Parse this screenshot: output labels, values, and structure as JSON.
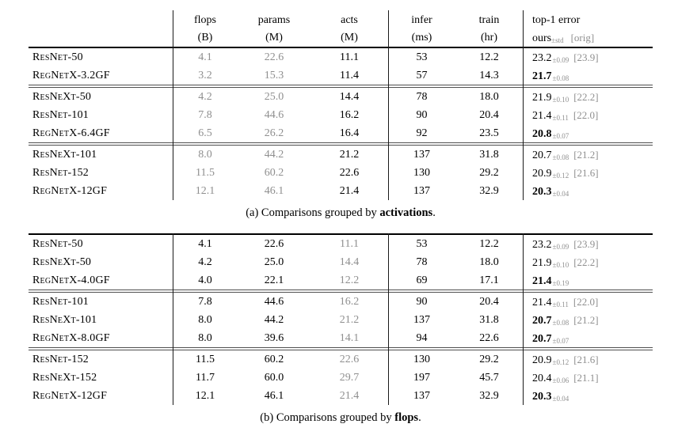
{
  "header": {
    "flops": {
      "l1": "flops",
      "l2": "(B)"
    },
    "params": {
      "l1": "params",
      "l2": "(M)"
    },
    "acts": {
      "l1": "acts",
      "l2": "(M)"
    },
    "infer": {
      "l1": "infer",
      "l2": "(ms)"
    },
    "train": {
      "l1": "train",
      "l2": "(hr)"
    },
    "error": {
      "title": "top-1 error",
      "ours": "ours",
      "std": "±std",
      "orig": "[orig]"
    }
  },
  "colors": {
    "muted": "#8f8f8f",
    "rule": "#000000",
    "double_rule": "#4f4f4f"
  },
  "table_a": {
    "caption": {
      "prefix": "(a) Comparisons grouped by ",
      "emph": "activations",
      "suffix": "."
    },
    "rows": [
      {
        "name": "ResNet-50",
        "flops": "4.1",
        "params": "22.6",
        "acts": "11.1",
        "infer": "53",
        "train": "12.2",
        "err": "23.2",
        "std": "±0.09",
        "orig": "[23.9]",
        "err_bold": false,
        "group_start": false
      },
      {
        "name": "RegNetX-3.2GF",
        "flops": "3.2",
        "params": "15.3",
        "acts": "11.4",
        "infer": "57",
        "train": "14.3",
        "err": "21.7",
        "std": "±0.08",
        "orig": "",
        "err_bold": true,
        "group_start": false
      },
      {
        "name": "ResNeXt-50",
        "flops": "4.2",
        "params": "25.0",
        "acts": "14.4",
        "infer": "78",
        "train": "18.0",
        "err": "21.9",
        "std": "±0.10",
        "orig": "[22.2]",
        "err_bold": false,
        "group_start": true
      },
      {
        "name": "ResNet-101",
        "flops": "7.8",
        "params": "44.6",
        "acts": "16.2",
        "infer": "90",
        "train": "20.4",
        "err": "21.4",
        "std": "±0.11",
        "orig": "[22.0]",
        "err_bold": false,
        "group_start": false
      },
      {
        "name": "RegNetX-6.4GF",
        "flops": "6.5",
        "params": "26.2",
        "acts": "16.4",
        "infer": "92",
        "train": "23.5",
        "err": "20.8",
        "std": "±0.07",
        "orig": "",
        "err_bold": true,
        "group_start": false
      },
      {
        "name": "ResNeXt-101",
        "flops": "8.0",
        "params": "44.2",
        "acts": "21.2",
        "infer": "137",
        "train": "31.8",
        "err": "20.7",
        "std": "±0.08",
        "orig": "[21.2]",
        "err_bold": false,
        "group_start": true
      },
      {
        "name": "ResNet-152",
        "flops": "11.5",
        "params": "60.2",
        "acts": "22.6",
        "infer": "130",
        "train": "29.2",
        "err": "20.9",
        "std": "±0.12",
        "orig": "[21.6]",
        "err_bold": false,
        "group_start": false
      },
      {
        "name": "RegNetX-12GF",
        "flops": "12.1",
        "params": "46.1",
        "acts": "21.4",
        "infer": "137",
        "train": "32.9",
        "err": "20.3",
        "std": "±0.04",
        "orig": "",
        "err_bold": true,
        "group_start": false
      }
    ]
  },
  "table_b": {
    "caption": {
      "prefix": "(b) Comparisons grouped by ",
      "emph": "flops",
      "suffix": "."
    },
    "rows": [
      {
        "name": "ResNet-50",
        "flops": "4.1",
        "params": "22.6",
        "acts": "11.1",
        "infer": "53",
        "train": "12.2",
        "err": "23.2",
        "std": "±0.09",
        "orig": "[23.9]",
        "err_bold": false,
        "group_start": false
      },
      {
        "name": "ResNeXt-50",
        "flops": "4.2",
        "params": "25.0",
        "acts": "14.4",
        "infer": "78",
        "train": "18.0",
        "err": "21.9",
        "std": "±0.10",
        "orig": "[22.2]",
        "err_bold": false,
        "group_start": false
      },
      {
        "name": "RegNetX-4.0GF",
        "flops": "4.0",
        "params": "22.1",
        "acts": "12.2",
        "infer": "69",
        "train": "17.1",
        "err": "21.4",
        "std": "±0.19",
        "orig": "",
        "err_bold": true,
        "group_start": false
      },
      {
        "name": "ResNet-101",
        "flops": "7.8",
        "params": "44.6",
        "acts": "16.2",
        "infer": "90",
        "train": "20.4",
        "err": "21.4",
        "std": "±0.11",
        "orig": "[22.0]",
        "err_bold": false,
        "group_start": true
      },
      {
        "name": "ResNeXt-101",
        "flops": "8.0",
        "params": "44.2",
        "acts": "21.2",
        "infer": "137",
        "train": "31.8",
        "err": "20.7",
        "std": "±0.08",
        "orig": "[21.2]",
        "err_bold": true,
        "group_start": false
      },
      {
        "name": "RegNetX-8.0GF",
        "flops": "8.0",
        "params": "39.6",
        "acts": "14.1",
        "infer": "94",
        "train": "22.6",
        "err": "20.7",
        "std": "±0.07",
        "orig": "",
        "err_bold": true,
        "group_start": false
      },
      {
        "name": "ResNet-152",
        "flops": "11.5",
        "params": "60.2",
        "acts": "22.6",
        "infer": "130",
        "train": "29.2",
        "err": "20.9",
        "std": "±0.12",
        "orig": "[21.6]",
        "err_bold": false,
        "group_start": true
      },
      {
        "name": "ResNeXt-152",
        "flops": "11.7",
        "params": "60.0",
        "acts": "29.7",
        "infer": "197",
        "train": "45.7",
        "err": "20.4",
        "std": "±0.06",
        "orig": "[21.1]",
        "err_bold": false,
        "group_start": false
      },
      {
        "name": "RegNetX-12GF",
        "flops": "12.1",
        "params": "46.1",
        "acts": "21.4",
        "infer": "137",
        "train": "32.9",
        "err": "20.3",
        "std": "±0.04",
        "orig": "",
        "err_bold": true,
        "group_start": false
      }
    ]
  }
}
